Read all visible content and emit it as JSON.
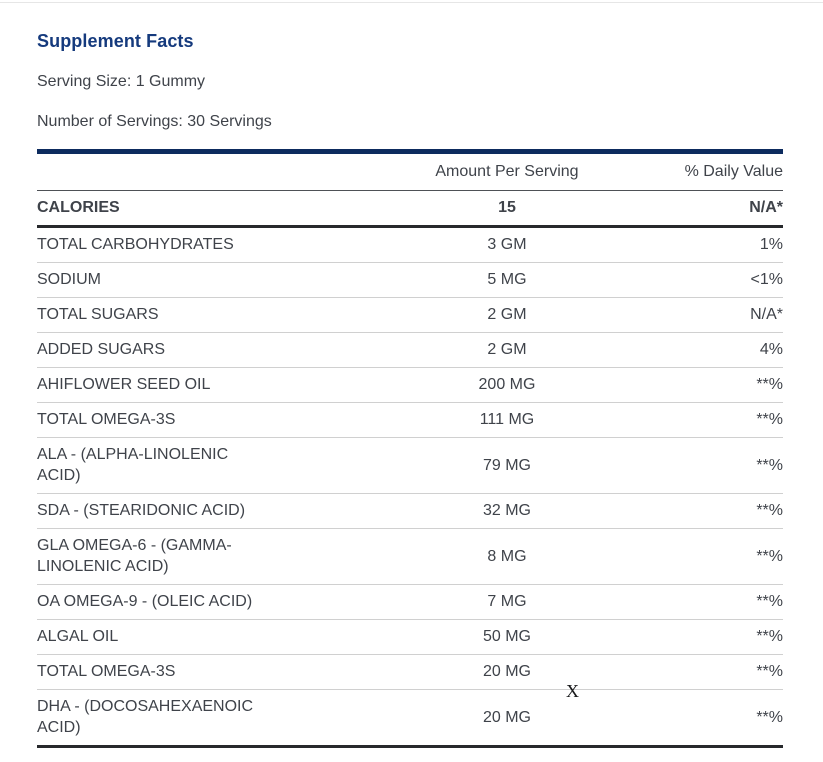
{
  "header": {
    "title": "Supplement Facts",
    "serving_size": "Serving Size: 1 Gummy",
    "number_of_servings": "Number of Servings: 30 Servings"
  },
  "table": {
    "columns": {
      "item": "",
      "amount": "Amount Per Serving",
      "daily_value": "% Daily Value"
    },
    "rows": [
      {
        "item": "CALORIES",
        "amount": "15",
        "daily_value": "N/A*",
        "bold": true
      },
      {
        "item": "TOTAL CARBOHYDRATES",
        "amount": "3 GM",
        "daily_value": "1%",
        "bold": false
      },
      {
        "item": "SODIUM",
        "amount": "5 MG",
        "daily_value": "<1%",
        "bold": false
      },
      {
        "item": "TOTAL SUGARS",
        "amount": "2 GM",
        "daily_value": "N/A*",
        "bold": false
      },
      {
        "item": "ADDED SUGARS",
        "amount": "2 GM",
        "daily_value": "4%",
        "bold": false
      },
      {
        "item": "AHIFLOWER SEED OIL",
        "amount": "200 MG",
        "daily_value": "**%",
        "bold": false
      },
      {
        "item": "TOTAL OMEGA-3S",
        "amount": "111 MG",
        "daily_value": "**%",
        "bold": false
      },
      {
        "item": "ALA - (ALPHA-LINOLENIC\nACID)",
        "amount": "79 MG",
        "daily_value": "**%",
        "bold": false
      },
      {
        "item": "SDA - (STEARIDONIC ACID)",
        "amount": "32 MG",
        "daily_value": "**%",
        "bold": false
      },
      {
        "item": "GLA OMEGA-6 - (GAMMA-\nLINOLENIC ACID)",
        "amount": "8 MG",
        "daily_value": "**%",
        "bold": false
      },
      {
        "item": "OA OMEGA-9 - (OLEIC ACID)",
        "amount": "7 MG",
        "daily_value": "**%",
        "bold": false
      },
      {
        "item": "ALGAL OIL",
        "amount": "50 MG",
        "daily_value": "**%",
        "bold": false
      },
      {
        "item": "TOTAL OMEGA-3S",
        "amount": "20 MG",
        "daily_value": "**%",
        "bold": false
      },
      {
        "item": "DHA - (DOCOSAHEXAENOIC\nACID)",
        "amount": "20 MG",
        "daily_value": "**%",
        "bold": false
      }
    ]
  },
  "artifacts": {
    "stray_mark": "X"
  },
  "colors": {
    "title_navy": "#153a7d",
    "bar_navy": "#0d2b5e",
    "text": "#3f434a",
    "separator_light": "#d0d0d0",
    "rule_dark": "#27292c"
  }
}
